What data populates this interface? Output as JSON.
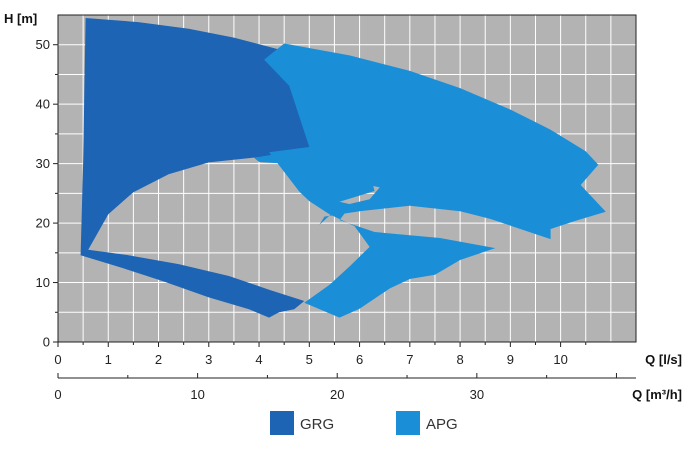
{
  "chart_data": {
    "type": "area",
    "plot_background": "#b3b3b3",
    "grid": true,
    "legend_position": "bottom",
    "y_axis": {
      "label": "H [m]",
      "range": [
        0,
        55
      ],
      "ticks": [
        0,
        10,
        20,
        30,
        40,
        50
      ]
    },
    "x_axis_primary": {
      "label": "Q [l/s]",
      "range": [
        0,
        11.5
      ],
      "ticks": [
        0,
        1,
        2,
        3,
        4,
        5,
        6,
        7,
        8,
        9,
        10
      ]
    },
    "x_axis_secondary": {
      "label": "Q [m³/h]",
      "range": [
        0,
        41.4
      ],
      "ticks": [
        0,
        10,
        20,
        30
      ]
    },
    "series": [
      {
        "name": "GRG",
        "color": "#1e64b4",
        "outline": [
          [
            0.55,
            54.5
          ],
          [
            1.6,
            53.8
          ],
          [
            2.6,
            52.7
          ],
          [
            3.5,
            51.2
          ],
          [
            4.4,
            49.2
          ],
          [
            5.2,
            46.8
          ],
          [
            6.0,
            43.9
          ],
          [
            6.8,
            40.4
          ],
          [
            7.5,
            37.2
          ],
          [
            8.2,
            35.0
          ],
          [
            8.6,
            34.1
          ],
          [
            8.6,
            33.0
          ],
          [
            8.1,
            30.8
          ],
          [
            8.6,
            27.1
          ],
          [
            7.9,
            22.4
          ],
          [
            7.0,
            26.2
          ],
          [
            6.0,
            29.1
          ],
          [
            5.0,
            30.6
          ],
          [
            4.0,
            31.1
          ],
          [
            3.0,
            30.2
          ],
          [
            2.2,
            28.2
          ],
          [
            1.5,
            25.2
          ],
          [
            1.0,
            21.5
          ],
          [
            0.6,
            15.5
          ],
          [
            1.4,
            14.6
          ],
          [
            2.4,
            13.1
          ],
          [
            3.4,
            11.1
          ],
          [
            4.2,
            8.8
          ],
          [
            4.9,
            6.9
          ],
          [
            4.7,
            5.5
          ],
          [
            4.4,
            5.0
          ],
          [
            4.2,
            4.1
          ],
          [
            3.8,
            5.5
          ],
          [
            3.0,
            7.5
          ],
          [
            2.1,
            10.2
          ],
          [
            1.3,
            12.4
          ],
          [
            0.45,
            14.6
          ],
          [
            0.5,
            30.0
          ]
        ]
      },
      {
        "name": "APG",
        "color": "#1a8fd8",
        "outline": [
          [
            4.5,
            50.2
          ],
          [
            5.8,
            48.2
          ],
          [
            7.0,
            45.6
          ],
          [
            8.0,
            42.7
          ],
          [
            9.0,
            39.1
          ],
          [
            9.8,
            35.7
          ],
          [
            10.5,
            32.1
          ],
          [
            10.75,
            29.8
          ],
          [
            10.4,
            26.4
          ],
          [
            10.9,
            21.9
          ],
          [
            10.3,
            20.4
          ],
          [
            9.8,
            19.0
          ],
          [
            9.8,
            17.3
          ],
          [
            8.6,
            20.7
          ],
          [
            8.0,
            22.0
          ],
          [
            7.0,
            22.9
          ],
          [
            6.0,
            22.0
          ],
          [
            5.3,
            21.1
          ],
          [
            5.2,
            19.7
          ],
          [
            5.6,
            22.8
          ],
          [
            6.2,
            24.0
          ],
          [
            6.4,
            26.0
          ],
          [
            5.7,
            27.3
          ],
          [
            5.0,
            28.4
          ],
          [
            4.8,
            28.9
          ],
          [
            4.5,
            30.0
          ],
          [
            4.0,
            30.3
          ],
          [
            3.9,
            31.0
          ],
          [
            4.9,
            32.4
          ],
          [
            6.1,
            29.0
          ],
          [
            6.2,
            28.5
          ],
          [
            6.3,
            25.4
          ],
          [
            5.6,
            23.6
          ],
          [
            6.1,
            22.6
          ],
          [
            5.7,
            21.6
          ],
          [
            5.6,
            20.5
          ],
          [
            6.3,
            18.5
          ],
          [
            7.6,
            17.5
          ],
          [
            8.7,
            15.8
          ],
          [
            8.0,
            13.8
          ],
          [
            7.5,
            11.3
          ],
          [
            7.0,
            10.6
          ],
          [
            6.6,
            9.0
          ],
          [
            6.3,
            7.3
          ],
          [
            6.0,
            5.6
          ],
          [
            5.6,
            4.1
          ],
          [
            4.9,
            6.6
          ],
          [
            5.4,
            9.6
          ],
          [
            5.8,
            12.7
          ],
          [
            6.2,
            16.0
          ],
          [
            5.9,
            19.5
          ],
          [
            5.4,
            21.5
          ],
          [
            5.0,
            23.7
          ],
          [
            4.8,
            25.3
          ],
          [
            4.2,
            31.9
          ],
          [
            5.0,
            32.8
          ],
          [
            4.6,
            43.1
          ],
          [
            4.1,
            47.5
          ]
        ]
      }
    ]
  }
}
